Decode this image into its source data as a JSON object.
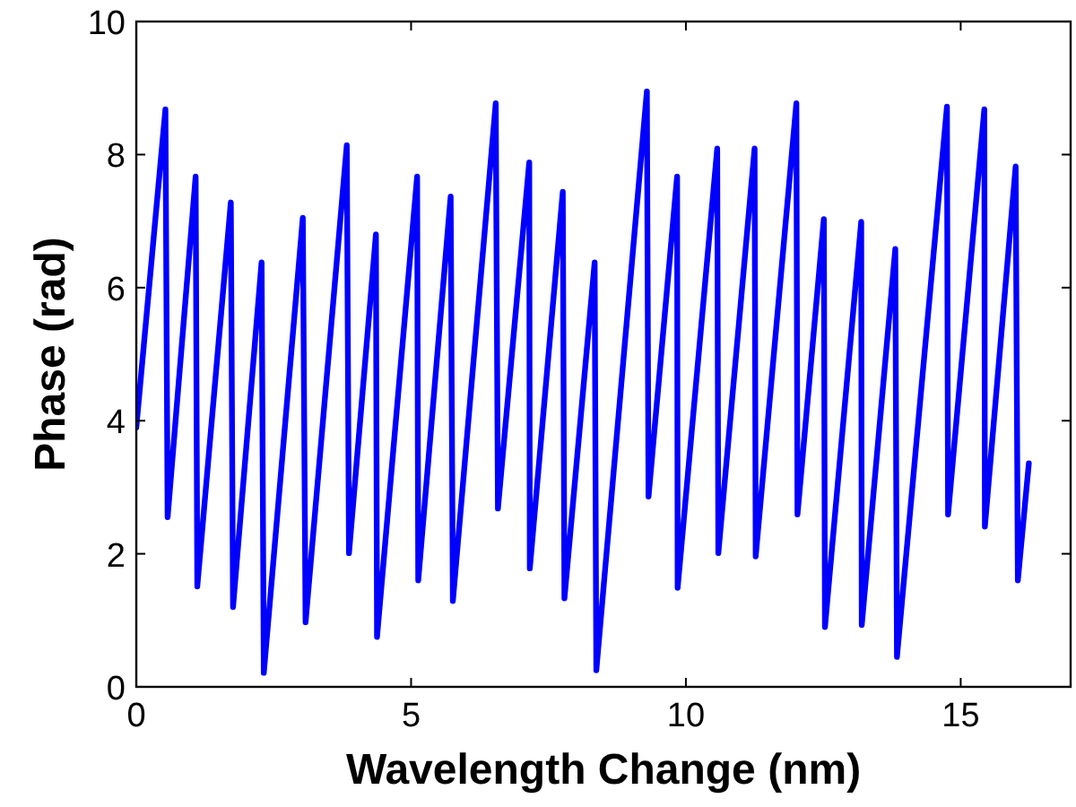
{
  "chart_data": {
    "type": "line",
    "xlabel": "Wavelength Change (nm)",
    "ylabel": "Phase (rad)",
    "xlim": [
      0,
      17
    ],
    "ylim": [
      0,
      10
    ],
    "xticks": [
      0,
      5,
      10,
      15
    ],
    "yticks": [
      0,
      2,
      4,
      6,
      8,
      10
    ],
    "grid": false,
    "line_style": "solid",
    "marker": "none",
    "series": [
      {
        "color": "#0000ff",
        "x": [
          0,
          0.53,
          0.57,
          1.08,
          1.11,
          1.72,
          1.76,
          2.28,
          2.32,
          3.03,
          3.08,
          3.83,
          3.87,
          4.36,
          4.38,
          5.11,
          5.13,
          5.72,
          5.76,
          6.54,
          6.58,
          7.15,
          7.16,
          7.76,
          7.79,
          8.34,
          8.37,
          9.29,
          9.32,
          9.84,
          9.85,
          10.57,
          10.59,
          11.25,
          11.27,
          12.01,
          12.03,
          12.51,
          12.53,
          13.19,
          13.2,
          13.81,
          13.84,
          14.75,
          14.77,
          15.43,
          15.44,
          16.0,
          16.04,
          16.24
        ],
        "values": [
          3.9,
          8.68,
          2.55,
          7.67,
          1.51,
          7.28,
          1.2,
          6.38,
          0.21,
          7.05,
          0.97,
          8.14,
          2.01,
          6.8,
          0.75,
          7.67,
          1.6,
          7.37,
          1.29,
          8.77,
          2.68,
          7.88,
          1.78,
          7.44,
          1.33,
          6.38,
          0.25,
          8.95,
          2.86,
          7.67,
          1.49,
          8.09,
          2.01,
          8.09,
          1.96,
          8.77,
          2.59,
          7.03,
          0.9,
          6.99,
          0.93,
          6.58,
          0.45,
          8.72,
          2.59,
          8.68,
          2.41,
          7.82,
          1.6,
          3.36
        ]
      }
    ]
  }
}
